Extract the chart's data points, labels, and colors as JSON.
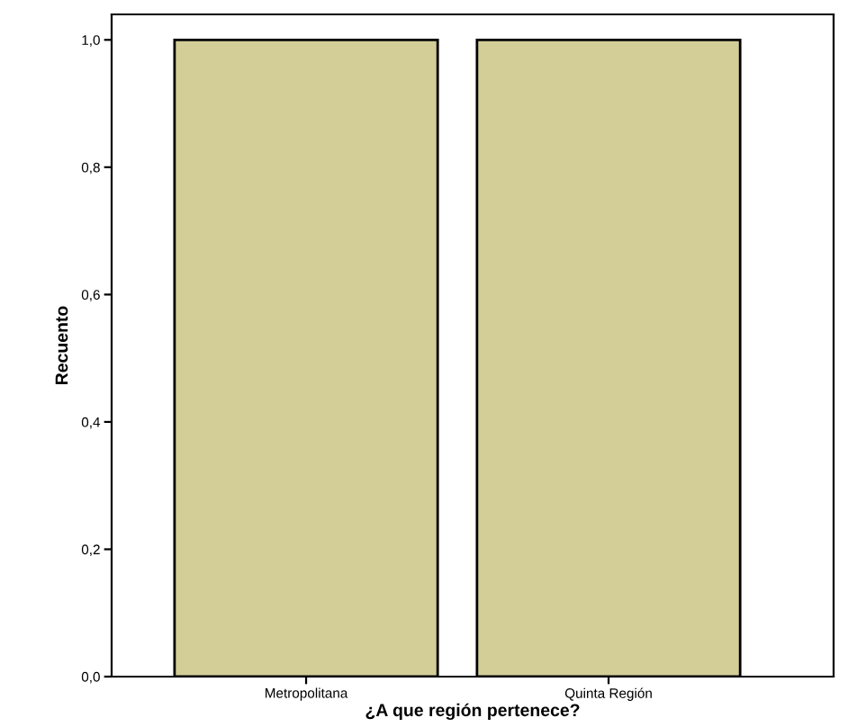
{
  "chart_data": {
    "type": "bar",
    "xlabel": "¿A que región pertenece?",
    "ylabel": "Recuento",
    "categories": [
      "Metropolitana",
      "Quinta Región"
    ],
    "values": [
      1.0,
      1.0
    ],
    "color": "#d3cd98",
    "ylim": [
      0,
      1.04
    ],
    "yticks": [
      {
        "value": 0,
        "label": "0,0"
      },
      {
        "value": 0.2,
        "label": "0,2"
      },
      {
        "value": 0.4,
        "label": "0,4"
      },
      {
        "value": 0.6,
        "label": "0,6"
      },
      {
        "value": 0.8,
        "label": "0,8"
      },
      {
        "value": 1.0,
        "label": "1,0"
      }
    ],
    "grid": false,
    "legend": false
  }
}
